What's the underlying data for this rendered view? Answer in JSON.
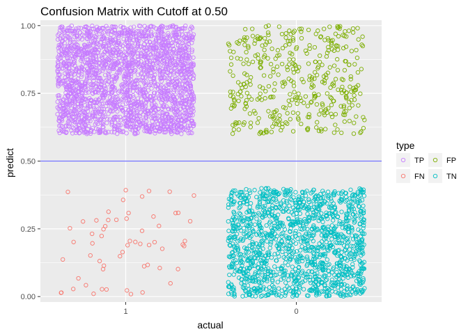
{
  "chart_data": {
    "type": "scatter",
    "title": "Confusion Matrix with Cutoff at 0.50",
    "xlabel": "actual",
    "ylabel": "predict",
    "x_categories": [
      "1",
      "0"
    ],
    "y_ticks": [
      "0.00",
      "0.25",
      "0.50",
      "0.75",
      "1.00"
    ],
    "ylim": [
      -0.02,
      1.02
    ],
    "cutoff": 0.5,
    "cutoff_color": "#7070ff",
    "panel_background": "#ebebeb",
    "grid": true,
    "jitter_width": 0.4,
    "legend": {
      "title": "type",
      "position": "right",
      "entries": [
        {
          "label": "TP",
          "color": "#c77cff"
        },
        {
          "label": "FP",
          "color": "#7cae00"
        },
        {
          "label": "FN",
          "color": "#f8766d"
        },
        {
          "label": "TN",
          "color": "#00bfc4"
        }
      ]
    },
    "series": [
      {
        "name": "TP",
        "color": "#c77cff",
        "actual": "1",
        "predict_range": [
          0.6,
          1.0
        ],
        "count": 2200
      },
      {
        "name": "FP",
        "color": "#7cae00",
        "actual": "0",
        "predict_range": [
          0.6,
          1.0
        ],
        "count": 420
      },
      {
        "name": "FN",
        "color": "#f8766d",
        "actual": "1",
        "predict_range": [
          0.0,
          0.4
        ],
        "count": 60
      },
      {
        "name": "TN",
        "color": "#00bfc4",
        "actual": "0",
        "predict_range": [
          0.0,
          0.4
        ],
        "count": 1400
      }
    ]
  }
}
